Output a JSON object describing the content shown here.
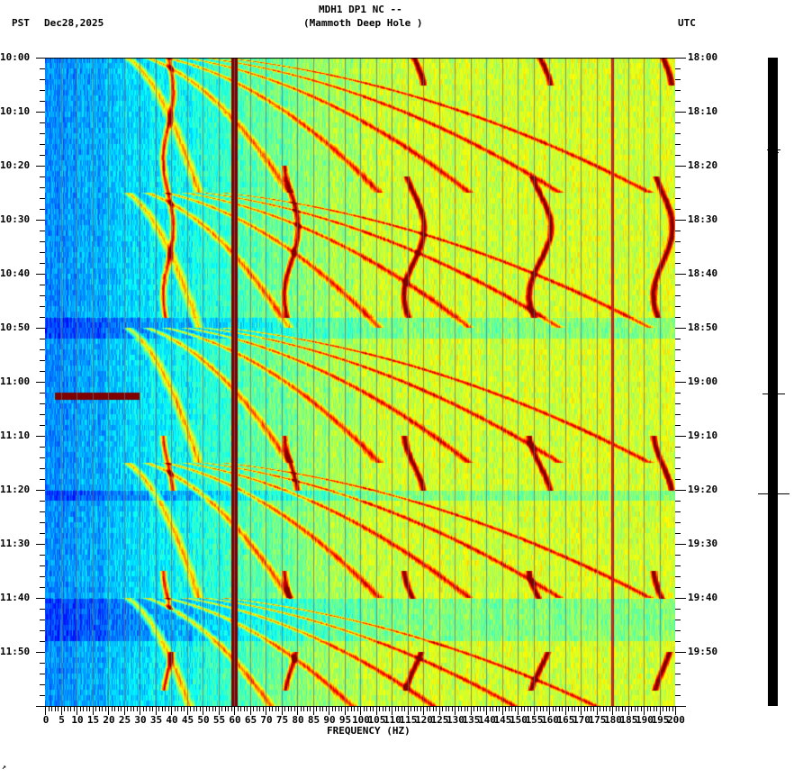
{
  "header": {
    "title_line1": "MDH1 DP1 NC --",
    "title_line2": "(Mammoth Deep Hole )",
    "left_tz": "PST",
    "date": "Dec28,2025",
    "right_tz": "UTC"
  },
  "footer_mark": "↗",
  "chart_data": {
    "type": "heatmap",
    "title": "MDH1 DP1 NC -- (Mammoth Deep Hole )",
    "subtitle": "Dec28,2025",
    "xlabel": "FREQUENCY (HZ)",
    "ylabel_left": "PST",
    "ylabel_right": "UTC",
    "xlim": [
      0,
      200
    ],
    "x_ticks": [
      0,
      5,
      10,
      15,
      20,
      25,
      30,
      35,
      40,
      45,
      50,
      55,
      60,
      65,
      70,
      75,
      80,
      85,
      90,
      95,
      100,
      105,
      110,
      115,
      120,
      125,
      130,
      135,
      140,
      145,
      150,
      155,
      160,
      165,
      170,
      175,
      180,
      185,
      190,
      195,
      200
    ],
    "y_ticks_left": [
      "10:00",
      "10:10",
      "10:20",
      "10:30",
      "10:40",
      "10:50",
      "11:00",
      "11:10",
      "11:20",
      "11:30",
      "11:40",
      "11:50"
    ],
    "y_ticks_right": [
      "18:00",
      "18:10",
      "18:20",
      "18:30",
      "18:40",
      "18:50",
      "19:00",
      "19:10",
      "19:20",
      "19:30",
      "19:40",
      "19:50"
    ],
    "time_range_pst": [
      "10:00",
      "12:00"
    ],
    "time_range_utc": [
      "18:00",
      "20:00"
    ],
    "colormap": "jet (blue=low, red=high)",
    "features": [
      {
        "name": "constant 60 Hz line",
        "freq_hz": 60,
        "intensity": "max"
      },
      {
        "name": "narrow line",
        "freq_hz": 180,
        "intensity": "high"
      },
      {
        "name": "wavering tone",
        "freq_hz_approx": 39,
        "times": "10:00-10:48, 11:10-11:40, 11:50-12:00"
      },
      {
        "name": "wavering tone",
        "freq_hz_approx": 78,
        "times": "10:20-10:48, 11:10-11:20, 11:35-11:40, 11:50-11:57"
      },
      {
        "name": "wavering tone",
        "freq_hz_approx": 117,
        "times": "10:00-10:05, 10:22-10:48, 11:10-11:20, 11:35-11:40, 11:50-11:57"
      },
      {
        "name": "wavering tone",
        "freq_hz_approx": 157,
        "times": "10:00-10:05, 10:22-10:48, 11:10-11:20, 11:35-11:40, 11:50-11:57"
      },
      {
        "name": "wavering tone",
        "freq_hz_approx": 196,
        "times": "10:00-10:05, 10:22-10:48, 11:10-11:20, 11:35-11:40, 11:50-11:57"
      },
      {
        "name": "broadband burst",
        "freq_hz": [
          3,
          30
        ],
        "time": "11:02"
      },
      {
        "name": "gliding harmonics (rising freq over ~25 min sweeps)",
        "freq_hz": [
          20,
          200
        ],
        "times": "10:00-12:00"
      }
    ],
    "grid": "vertical lines every 5 Hz"
  },
  "trace": {
    "label": "seismogram trace strip",
    "spikes_at": [
      "18:17",
      "19:02",
      "19:20"
    ]
  }
}
